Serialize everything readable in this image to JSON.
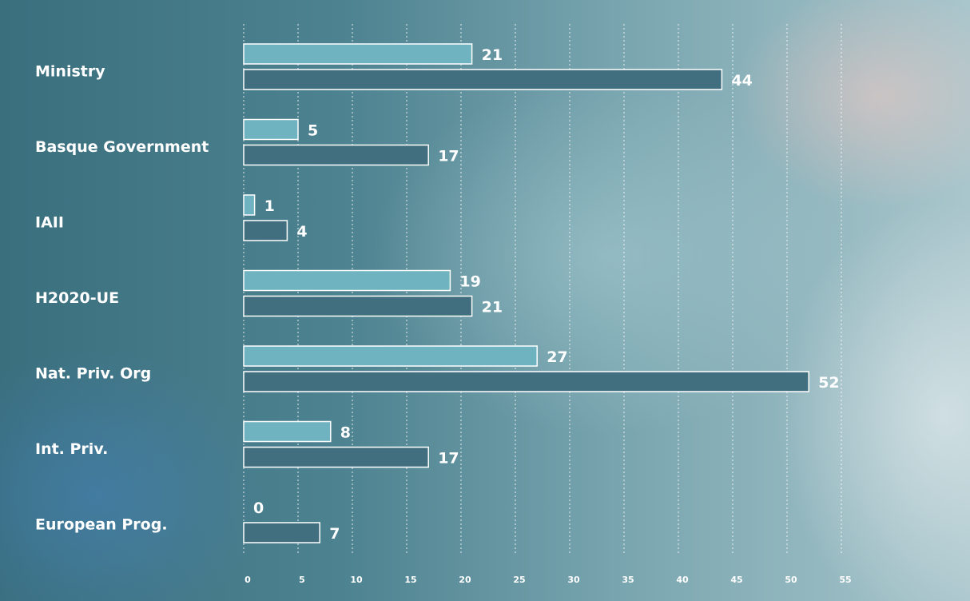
{
  "chart_data": {
    "type": "bar",
    "orientation": "horizontal",
    "categories": [
      "Ministry",
      "Basque Government",
      "IAII",
      "H2020-UE",
      "Nat. Priv. Org",
      "Int. Priv.",
      "European Prog."
    ],
    "series": [
      {
        "color": "#6fb3c1",
        "values": [
          21,
          5,
          1,
          19,
          27,
          8,
          0
        ]
      },
      {
        "color": "#426f80",
        "values": [
          44,
          17,
          4,
          21,
          52,
          17,
          7
        ]
      }
    ],
    "xlim": [
      0,
      55
    ],
    "xticks": [
      0,
      5,
      10,
      15,
      20,
      25,
      30,
      35,
      40,
      45,
      50,
      55
    ],
    "grid": true
  }
}
